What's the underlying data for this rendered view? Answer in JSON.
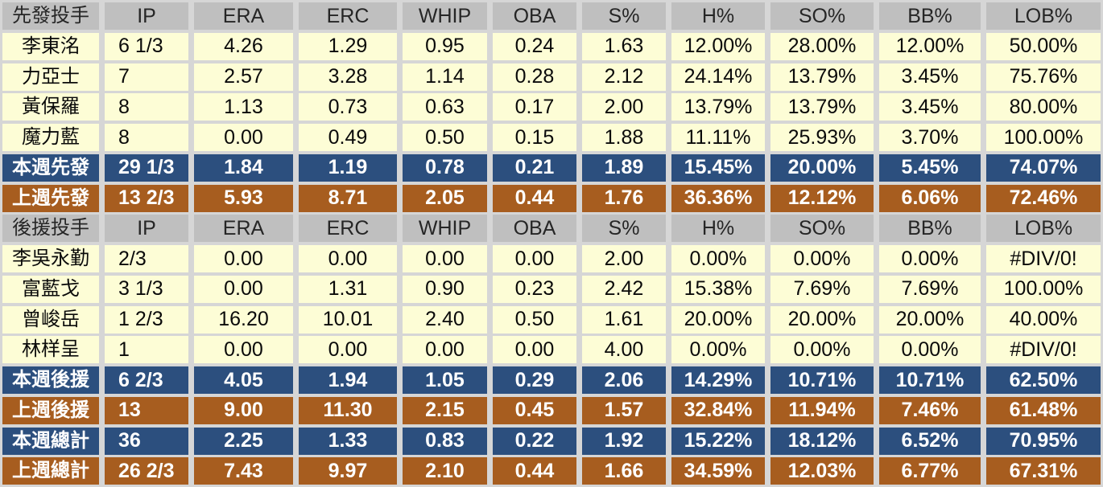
{
  "colors": {
    "grid_gap": "#d6d6d6",
    "header_bg": "#bfbfbf",
    "player_row_bg": "#fdfdd6",
    "this_week_row_bg": "#2c4f7e",
    "last_week_row_bg": "#a75d1f",
    "header_text": "#262626",
    "player_text": "#0a0a0a",
    "summary_text": "#ffffff"
  },
  "table": {
    "stat_columns": [
      "IP",
      "ERA",
      "ERC",
      "WHIP",
      "OBA",
      "S%",
      "H%",
      "SO%",
      "BB%",
      "LOB%"
    ],
    "sections": [
      {
        "header_label": "先發投手",
        "rows": [
          {
            "name": "李東洺",
            "type": "player",
            "values": [
              "6 1/3",
              "4.26",
              "1.29",
              "0.95",
              "0.24",
              "1.63",
              "12.00%",
              "28.00%",
              "12.00%",
              "50.00%"
            ]
          },
          {
            "name": "力亞士",
            "type": "player",
            "values": [
              "7",
              "2.57",
              "3.28",
              "1.14",
              "0.28",
              "2.12",
              "24.14%",
              "13.79%",
              "3.45%",
              "75.76%"
            ]
          },
          {
            "name": "黃保羅",
            "type": "player",
            "values": [
              "8",
              "1.13",
              "0.73",
              "0.63",
              "0.17",
              "2.00",
              "13.79%",
              "13.79%",
              "3.45%",
              "80.00%"
            ]
          },
          {
            "name": "魔力藍",
            "type": "player",
            "values": [
              "8",
              "0.00",
              "0.49",
              "0.50",
              "0.15",
              "1.88",
              "11.11%",
              "25.93%",
              "3.70%",
              "100.00%"
            ]
          },
          {
            "name": "本週先發",
            "type": "week",
            "values": [
              "29 1/3",
              "1.84",
              "1.19",
              "0.78",
              "0.21",
              "1.89",
              "15.45%",
              "20.00%",
              "5.45%",
              "74.07%"
            ]
          },
          {
            "name": "上週先發",
            "type": "lastweek",
            "values": [
              "13 2/3",
              "5.93",
              "8.71",
              "2.05",
              "0.44",
              "1.76",
              "36.36%",
              "12.12%",
              "6.06%",
              "72.46%"
            ]
          }
        ]
      },
      {
        "header_label": "後援投手",
        "rows": [
          {
            "name": "李吳永勤",
            "type": "player",
            "values": [
              "2/3",
              "0.00",
              "0.00",
              "0.00",
              "0.00",
              "2.00",
              "0.00%",
              "0.00%",
              "0.00%",
              "#DIV/0!"
            ]
          },
          {
            "name": "富藍戈",
            "type": "player",
            "values": [
              "3 1/3",
              "0.00",
              "1.31",
              "0.90",
              "0.23",
              "2.42",
              "15.38%",
              "7.69%",
              "7.69%",
              "100.00%"
            ]
          },
          {
            "name": "曾峻岳",
            "type": "player",
            "values": [
              "1 2/3",
              "16.20",
              "10.01",
              "2.40",
              "0.50",
              "1.61",
              "20.00%",
              "20.00%",
              "20.00%",
              "40.00%"
            ]
          },
          {
            "name": "林样呈",
            "type": "player",
            "values": [
              "1",
              "0.00",
              "0.00",
              "0.00",
              "0.00",
              "4.00",
              "0.00%",
              "0.00%",
              "0.00%",
              "#DIV/0!"
            ]
          },
          {
            "name": "本週後援",
            "type": "week",
            "values": [
              "6 2/3",
              "4.05",
              "1.94",
              "1.05",
              "0.29",
              "2.06",
              "14.29%",
              "10.71%",
              "10.71%",
              "62.50%"
            ]
          },
          {
            "name": "上週後援",
            "type": "lastweek",
            "values": [
              "13",
              "9.00",
              "11.30",
              "2.15",
              "0.45",
              "1.57",
              "32.84%",
              "11.94%",
              "7.46%",
              "61.48%"
            ]
          },
          {
            "name": "本週總計",
            "type": "week",
            "values": [
              "36",
              "2.25",
              "1.33",
              "0.83",
              "0.22",
              "1.92",
              "15.22%",
              "18.12%",
              "6.52%",
              "70.95%"
            ]
          },
          {
            "name": "上週總計",
            "type": "lastweek",
            "values": [
              "26 2/3",
              "7.43",
              "9.97",
              "2.10",
              "0.44",
              "1.66",
              "34.59%",
              "12.03%",
              "6.77%",
              "67.31%"
            ]
          }
        ]
      }
    ]
  }
}
